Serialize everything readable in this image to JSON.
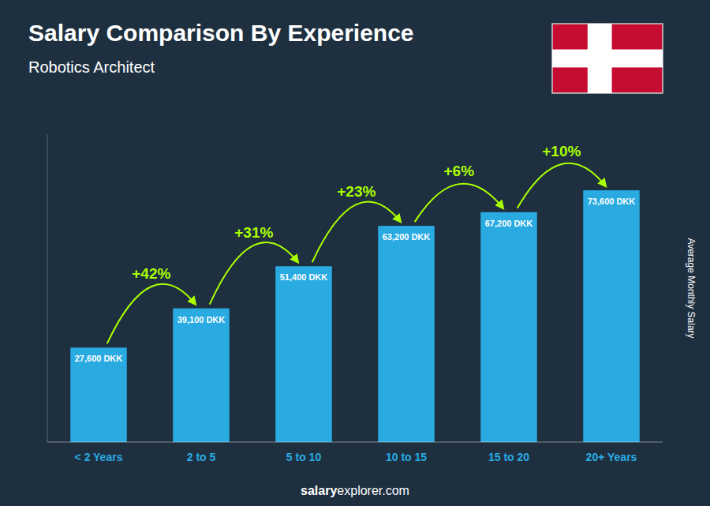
{
  "chart_data": {
    "type": "bar",
    "title": "Salary Comparison By Experience",
    "subtitle": "Robotics Architect",
    "ylabel": "Average Monthly Salary",
    "categories": [
      "< 2 Years",
      "2 to 5",
      "5 to 10",
      "10 to 15",
      "15 to 20",
      "20+ Years"
    ],
    "values": [
      27600,
      39100,
      51400,
      63200,
      67200,
      73600
    ],
    "value_labels": [
      "27,600 DKK",
      "39,100 DKK",
      "51,400 DKK",
      "63,200 DKK",
      "67,200 DKK",
      "73,600 DKK"
    ],
    "annotations": [
      "+42%",
      "+31%",
      "+23%",
      "+6%",
      "+10%"
    ],
    "footer_bold": "salary",
    "footer_regular": "explorer.com",
    "color": "#29ABE2",
    "ylim": [
      0,
      90000
    ],
    "data_labels": true,
    "tick_labels": "x",
    "grid": false
  }
}
